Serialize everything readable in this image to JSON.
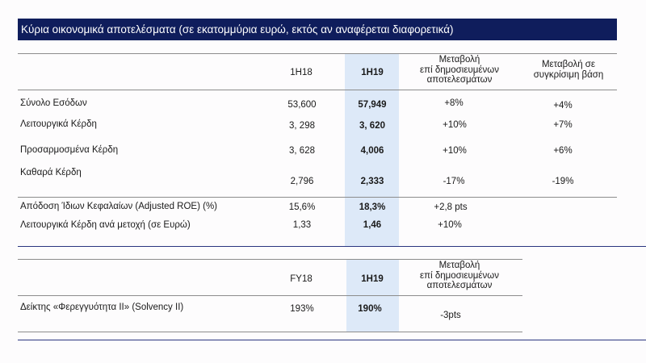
{
  "title": "Κύρια οικονομικά αποτελέσματα (σε εκατομμύρια ευρώ, εκτός αν αναφέρεται διαφορετικά)",
  "table1": {
    "headers": {
      "col1": "1H18",
      "col2": "1H19",
      "col3_l1": "Μεταβολή",
      "col3_l2": "επί δημοσιευμένων",
      "col3_l3": "αποτελεσμάτων",
      "col4_l1": "Μεταβολή σε",
      "col4_l2": "συγκρίσιμη βάση"
    },
    "rows": [
      {
        "label": "Σύνολο Εσόδων",
        "v1": "53,600",
        "v2": "57,949",
        "v3": "+8%",
        "v4": "+4%"
      },
      {
        "label": "Λειτουργικά Κέρδη",
        "v1": "3, 298",
        "v2": "3, 620",
        "v3": "+10%",
        "v4": "+7%"
      },
      {
        "label": "Προσαρμοσμένα Κέρδη",
        "v1": "3, 628",
        "v2": "4,006",
        "v3": "+10%",
        "v4": "+6%"
      },
      {
        "label": "Καθαρά Κέρδη",
        "v1": "2,796",
        "v2": "2,333",
        "v3": "-17%",
        "v4": "-19%"
      },
      {
        "label": "Απόδοση Ίδιων Κεφαλαίων (Adjusted ROE) (%)",
        "v1": "15,6%",
        "v2": "18,3%",
        "v3": "+2,8 pts",
        "v4": ""
      },
      {
        "label": "Λειτουργικά Κέρδη ανά μετοχή (σε Ευρώ)",
        "v1": "1,33",
        "v2": "1,46",
        "v3": "+10%",
        "v4": ""
      }
    ]
  },
  "table2": {
    "headers": {
      "col1": "FY18",
      "col2": "1H19",
      "col3_l1": "Μεταβολή",
      "col3_l2": "επί δημοσιευμένων",
      "col3_l3": "αποτελεσμάτων"
    },
    "rows": [
      {
        "label": "Δείκτης «Φερεγγυότητα ΙΙ» (Solvency II)",
        "v1": "193%",
        "v2": "190%",
        "v3": "-3pts"
      }
    ]
  }
}
